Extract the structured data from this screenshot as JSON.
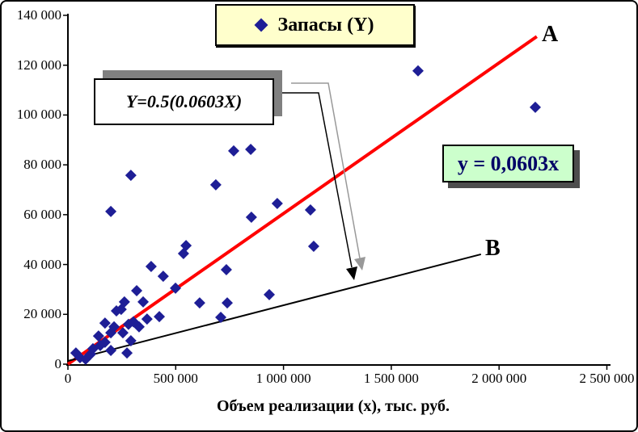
{
  "legend": {
    "label": "Запасы (Y)",
    "bg_color": "#FFFFCC"
  },
  "annotations": {
    "formula_box": {
      "text": "Y=0.5(0.0603X)"
    },
    "equation_box": {
      "text": "y = 0,0603x",
      "bg_color": "#CCFFCC",
      "text_color": "#000066"
    },
    "line_a_label": "A",
    "line_b_label": "B"
  },
  "axes": {
    "x": {
      "title": "Объем реализации (x), тыс. руб.",
      "tick_values": [
        0,
        500000,
        1000000,
        1500000,
        2000000,
        2500000
      ],
      "tick_labels": [
        "0",
        "500 000",
        "1 000 000",
        "1 500 000",
        "2 000 000",
        "2 500 000"
      ]
    },
    "y": {
      "tick_values": [
        0,
        20000,
        40000,
        60000,
        80000,
        100000,
        120000,
        140000
      ],
      "tick_labels": [
        "0",
        "20 000",
        "40 000",
        "60 000",
        "80 000",
        "100 000",
        "120 000",
        "140 000"
      ]
    }
  },
  "chart_data": {
    "type": "scatter",
    "title": "",
    "xlabel": "Объем реализации (x), тыс. руб.",
    "ylabel": "",
    "xlim": [
      0,
      2500000
    ],
    "ylim": [
      0,
      140000
    ],
    "grid": false,
    "legend_position": "top-center",
    "series": [
      {
        "name": "Запасы (Y)",
        "marker": "diamond",
        "color": "#1E1E96",
        "points": [
          [
            37000,
            4500
          ],
          [
            56000,
            2600
          ],
          [
            82000,
            2000
          ],
          [
            105000,
            4000
          ],
          [
            116000,
            6200
          ],
          [
            142000,
            11300
          ],
          [
            150000,
            7500
          ],
          [
            172000,
            16500
          ],
          [
            172000,
            8800
          ],
          [
            199000,
            5500
          ],
          [
            199000,
            12600
          ],
          [
            214000,
            15000
          ],
          [
            225000,
            21400
          ],
          [
            247000,
            22000
          ],
          [
            255000,
            12600
          ],
          [
            262000,
            25000
          ],
          [
            274000,
            4500
          ],
          [
            281000,
            16000
          ],
          [
            292000,
            9400
          ],
          [
            304000,
            17000
          ],
          [
            319000,
            29500
          ],
          [
            330000,
            15000
          ],
          [
            349000,
            25000
          ],
          [
            367000,
            18100
          ],
          [
            386000,
            39200
          ],
          [
            424000,
            19100
          ],
          [
            442000,
            35300
          ],
          [
            499000,
            30500
          ],
          [
            536000,
            44400
          ],
          [
            548000,
            47600
          ],
          [
            199000,
            61300
          ],
          [
            292000,
            75800
          ],
          [
            611000,
            24600
          ],
          [
            686000,
            72000
          ],
          [
            709000,
            18800
          ],
          [
            735000,
            37900
          ],
          [
            739000,
            24600
          ],
          [
            769000,
            85600
          ],
          [
            848000,
            86200
          ],
          [
            851000,
            59000
          ],
          [
            934000,
            27900
          ],
          [
            971000,
            64500
          ],
          [
            1125000,
            61900
          ],
          [
            1140000,
            47300
          ],
          [
            1624000,
            117700
          ],
          [
            2168000,
            103100
          ]
        ]
      }
    ],
    "trend_lines": [
      {
        "label": "A",
        "color": "#FF0000",
        "width": 4,
        "from": [
          0,
          0
        ],
        "to": [
          2175000,
          131500
        ]
      },
      {
        "label": "B",
        "color": "#000000",
        "width": 2,
        "from": [
          0,
          1300
        ],
        "to": [
          1916000,
          44100
        ]
      }
    ]
  }
}
